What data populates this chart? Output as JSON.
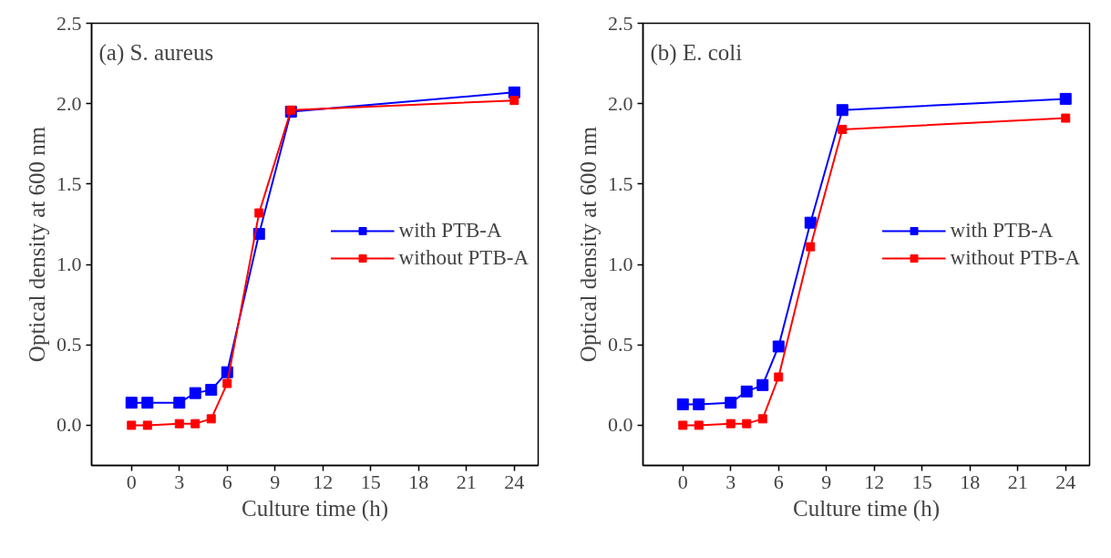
{
  "chart_data": [
    {
      "type": "line",
      "title": "(a) S. aureus",
      "xlabel": "Culture time (h)",
      "ylabel": "Optical density at 600 nm",
      "x": [
        0,
        1,
        3,
        4,
        5,
        6,
        8,
        10,
        24
      ],
      "series": [
        {
          "name": "with PTB-A",
          "color": "#0000ff",
          "values": [
            0.14,
            0.14,
            0.14,
            0.2,
            0.22,
            0.33,
            1.19,
            1.95,
            2.07
          ]
        },
        {
          "name": "without PTB-A",
          "color": "#ff0000",
          "values": [
            0.0,
            0.0,
            0.01,
            0.01,
            0.04,
            0.26,
            1.32,
            1.96,
            2.02
          ]
        }
      ],
      "xlim": [
        -2.5,
        25.5
      ],
      "xticks": [
        0,
        3,
        6,
        9,
        12,
        15,
        18,
        21,
        24
      ],
      "ylim": [
        -0.25,
        2.5
      ],
      "yticks": [
        {
          "value": 0,
          "label": "0.0"
        },
        0.5,
        {
          "value": 1,
          "label": "1.0"
        },
        1.5,
        {
          "value": 2,
          "label": "2.0"
        },
        2.5
      ],
      "marker": "square",
      "line_style": "solid",
      "legend": "right",
      "grid": false
    },
    {
      "type": "line",
      "title": "(b) E. coli",
      "xlabel": "Culture time (h)",
      "ylabel": "Optical density at 600 nm",
      "x": [
        0,
        1,
        3,
        4,
        5,
        6,
        8,
        10,
        24
      ],
      "series": [
        {
          "name": "with PTB-A",
          "color": "#0000ff",
          "values": [
            0.13,
            0.13,
            0.14,
            0.21,
            0.25,
            0.49,
            1.26,
            1.96,
            2.03
          ]
        },
        {
          "name": "without PTB-A",
          "color": "#ff0000",
          "values": [
            0.0,
            0.0,
            0.01,
            0.01,
            0.04,
            0.3,
            1.11,
            1.84,
            1.91
          ]
        }
      ],
      "xlim": [
        -2.5,
        25.5
      ],
      "xticks": [
        0,
        3,
        6,
        9,
        12,
        15,
        18,
        21,
        24
      ],
      "ylim": [
        -0.25,
        2.5
      ],
      "yticks": [
        {
          "value": 0,
          "label": "0.0"
        },
        0.5,
        {
          "value": 1,
          "label": "1.0"
        },
        1.5,
        {
          "value": 2,
          "label": "2.0"
        },
        2.5
      ],
      "marker": "square",
      "line_style": "solid",
      "legend": "right",
      "grid": false
    }
  ]
}
